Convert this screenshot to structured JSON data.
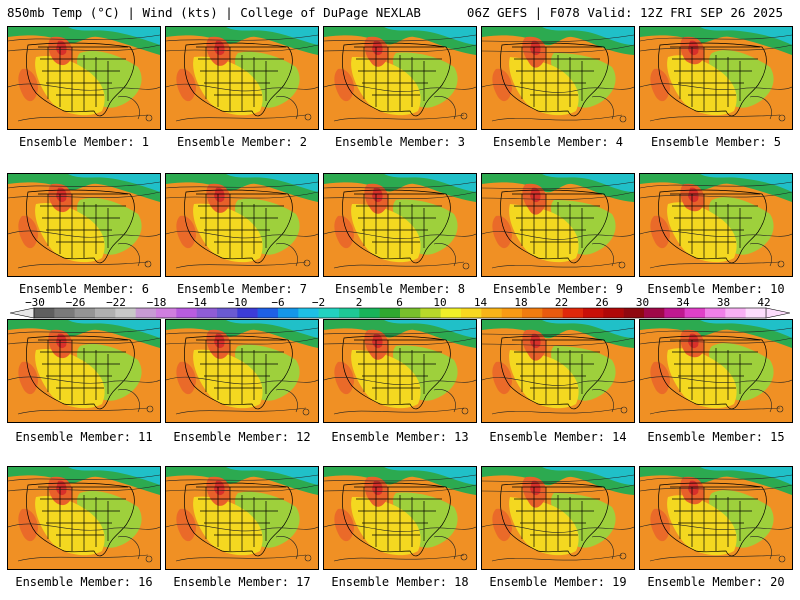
{
  "header": {
    "left": "850mb Temp (°C) | Wind (kts) | College of DuPage NEXLAB",
    "right": "06Z GEFS | F078 Valid: 12Z FRI SEP 26 2025"
  },
  "panels": [
    "Ensemble Member: 1",
    "Ensemble Member: 2",
    "Ensemble Member: 3",
    "Ensemble Member: 4",
    "Ensemble Member: 5",
    "Ensemble Member: 6",
    "Ensemble Member: 7",
    "Ensemble Member: 8",
    "Ensemble Member: 9",
    "Ensemble Member: 10",
    "Ensemble Member: 11",
    "Ensemble Member: 12",
    "Ensemble Member: 13",
    "Ensemble Member: 14",
    "Ensemble Member: 15",
    "Ensemble Member: 16",
    "Ensemble Member: 17",
    "Ensemble Member: 18",
    "Ensemble Member: 19",
    "Ensemble Member: 20"
  ],
  "colorbar": {
    "ticks": [
      "−30",
      "−26",
      "−22",
      "−18",
      "−14",
      "−10",
      "−6",
      "−2",
      "2",
      "6",
      "10",
      "14",
      "18",
      "22",
      "26",
      "30",
      "34",
      "38",
      "42"
    ],
    "colors": [
      "#5f5f5f",
      "#7a7a7a",
      "#959595",
      "#b0b0b0",
      "#c8c8c8",
      "#c89bd4",
      "#d07ee0",
      "#b85ce0",
      "#8f5cd6",
      "#6a5ad2",
      "#3c3cd8",
      "#1e60e6",
      "#1496e8",
      "#1ec0e6",
      "#22d2c0",
      "#1ec896",
      "#18b45a",
      "#30a830",
      "#78c02c",
      "#b8d82a",
      "#f0f028",
      "#f8d820",
      "#f8b418",
      "#f89a14",
      "#f07c10",
      "#e85a0e",
      "#e0280a",
      "#c81008",
      "#b00808",
      "#900810",
      "#a00848",
      "#c01890",
      "#e040c8",
      "#f080e8",
      "#f8b0f4",
      "#fcdcfc"
    ]
  },
  "map_colors": {
    "cold": "#20c0c8",
    "cool": "#2caa50",
    "mild": "#9ed03c",
    "warm": "#f4d820",
    "hot": "#f09024",
    "hotter": "#e8602a",
    "hottest": "#d8302a",
    "water": "#e89a2c"
  }
}
